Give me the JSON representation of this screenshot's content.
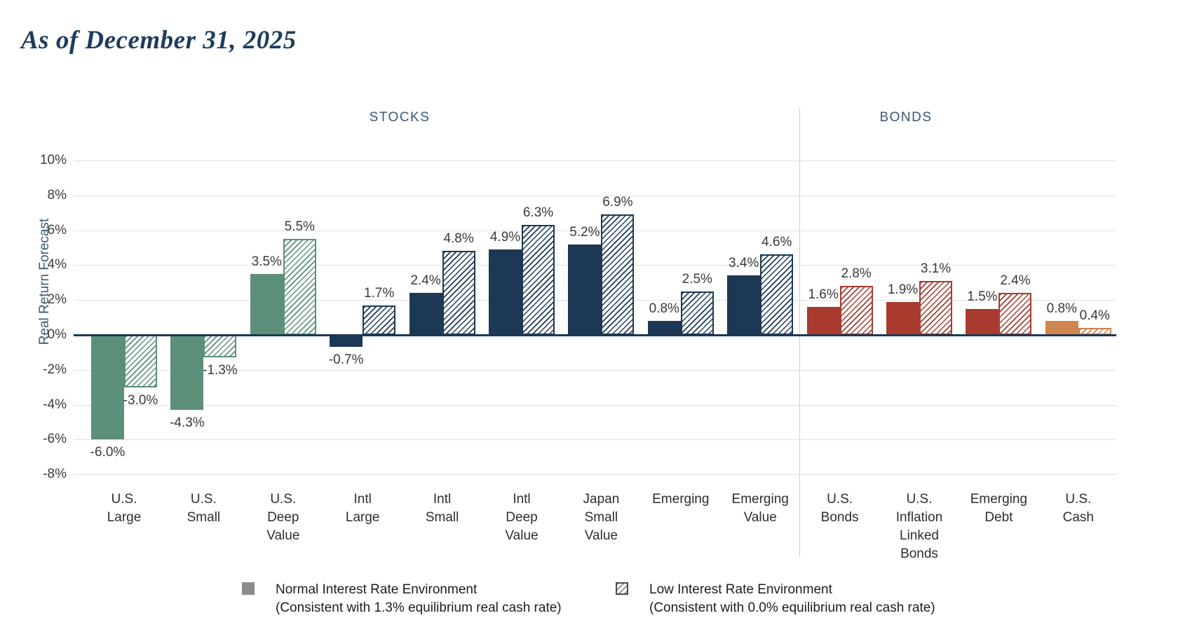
{
  "title": "As of December 31, 2025",
  "sections": {
    "stocks": "STOCKS",
    "bonds": "BONDS"
  },
  "ylabel": "Real Return Forecast",
  "colors": {
    "green": "#5c8f7a",
    "navy": "#1d3854",
    "red": "#a83b2e",
    "orange": "#d08450",
    "axis": "#1d3854",
    "grid": "#d8e2e8",
    "legend_gray": "#8c8c8c"
  },
  "legend": [
    {
      "label": "Normal Interest Rate Environment",
      "sub": "(Consistent with 1.3% equilibrium real cash rate)",
      "swatch": "solid"
    },
    {
      "label": "Low Interest Rate Environment",
      "sub": "(Consistent with 0.0% equilibrium real cash rate)",
      "swatch": "hatched"
    }
  ],
  "chart_data": {
    "type": "bar",
    "title": "As of December 31, 2025",
    "ylabel": "Real Return Forecast",
    "ylim": [
      -8,
      10
    ],
    "ytick_step": 2,
    "yticks": [
      "10%",
      "8%",
      "6%",
      "4%",
      "2%",
      "0%",
      "-2%",
      "-4%",
      "-6%",
      "-8%"
    ],
    "grid": true,
    "legend_position": "bottom",
    "section_split_after_index": 8,
    "categories": [
      {
        "label": "U.S. Large",
        "lines": [
          "U.S.",
          "Large"
        ],
        "section": "STOCKS",
        "color": "green"
      },
      {
        "label": "U.S. Small",
        "lines": [
          "U.S.",
          "Small"
        ],
        "section": "STOCKS",
        "color": "green"
      },
      {
        "label": "U.S. Deep Value",
        "lines": [
          "U.S.",
          "Deep",
          "Value"
        ],
        "section": "STOCKS",
        "color": "green"
      },
      {
        "label": "Intl Large",
        "lines": [
          "Intl",
          "Large"
        ],
        "section": "STOCKS",
        "color": "navy"
      },
      {
        "label": "Intl Small",
        "lines": [
          "Intl",
          "Small"
        ],
        "section": "STOCKS",
        "color": "navy"
      },
      {
        "label": "Intl Deep Value",
        "lines": [
          "Intl",
          "Deep",
          "Value"
        ],
        "section": "STOCKS",
        "color": "navy"
      },
      {
        "label": "Japan Small Value",
        "lines": [
          "Japan",
          "Small",
          "Value"
        ],
        "section": "STOCKS",
        "color": "navy"
      },
      {
        "label": "Emerging",
        "lines": [
          "Emerging"
        ],
        "section": "STOCKS",
        "color": "navy"
      },
      {
        "label": "Emerging Value",
        "lines": [
          "Emerging",
          "Value"
        ],
        "section": "STOCKS",
        "color": "navy"
      },
      {
        "label": "U.S. Bonds",
        "lines": [
          "U.S.",
          "Bonds"
        ],
        "section": "BONDS",
        "color": "red"
      },
      {
        "label": "U.S. Inflation Linked Bonds",
        "lines": [
          "U.S.",
          "Inflation",
          "Linked",
          "Bonds"
        ],
        "section": "BONDS",
        "color": "red"
      },
      {
        "label": "Emerging Debt",
        "lines": [
          "Emerging",
          "Debt"
        ],
        "section": "BONDS",
        "color": "red"
      },
      {
        "label": "U.S. Cash",
        "lines": [
          "U.S.",
          "Cash"
        ],
        "section": "BONDS",
        "color": "orange"
      }
    ],
    "series": [
      {
        "name": "Normal Interest Rate Environment",
        "style": "solid",
        "values": [
          -6.0,
          -4.3,
          3.5,
          -0.7,
          2.4,
          4.9,
          5.2,
          0.8,
          3.4,
          1.6,
          1.9,
          1.5,
          0.8
        ],
        "labels": [
          "-6.0%",
          "-4.3%",
          "3.5%",
          "-0.7%",
          "2.4%",
          "4.9%",
          "5.2%",
          "0.8%",
          "3.4%",
          "1.6%",
          "1.9%",
          "1.5%",
          "0.8%"
        ]
      },
      {
        "name": "Low Interest Rate Environment",
        "style": "hatched",
        "values": [
          -3.0,
          -1.3,
          5.5,
          1.7,
          4.8,
          6.3,
          6.9,
          2.5,
          4.6,
          2.8,
          3.1,
          2.4,
          0.4
        ],
        "labels": [
          "-3.0%",
          "-1.3%",
          "5.5%",
          "1.7%",
          "4.8%",
          "6.3%",
          "6.9%",
          "2.5%",
          "4.6%",
          "2.8%",
          "3.1%",
          "2.4%",
          "0.4%"
        ]
      }
    ]
  }
}
